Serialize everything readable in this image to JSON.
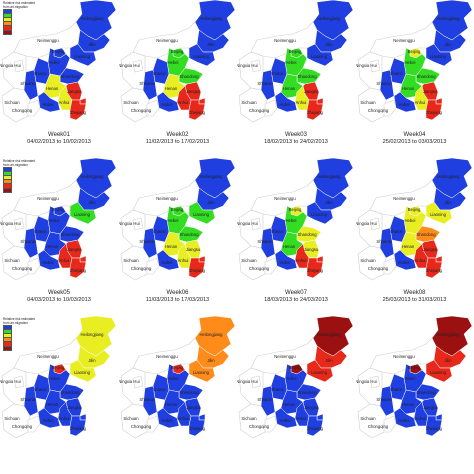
{
  "colors": {
    "class1": "#1f3fe0",
    "class2": "#33dd22",
    "class3": "#e8ee22",
    "class4": "#ff8c1a",
    "class5": "#e8281a",
    "class6": "#9b1010",
    "outline": "#cfcfcf"
  },
  "legend": {
    "title": "Relative risk estimated from air-migration",
    "entries": [
      "class1",
      "class2",
      "class3",
      "class4",
      "class5",
      "class6"
    ]
  },
  "province_names": {
    "heilongjiang": "Heilongjiang",
    "jilin": "Jilin",
    "liaoning": "Liaoning",
    "neimenggu": "Neimenggu",
    "beijing": "Beijing",
    "hebei": "Hebei",
    "shanxi": "Shanxi",
    "shandong": "Shandong",
    "henan": "Henan",
    "jiangsu": "Jiangsu",
    "anhui": "Anhui",
    "shaanxi": "Shaanxi",
    "hubei": "Hubei",
    "sichuan": "Sichuan",
    "chongqing": "Chongqing",
    "ningxia": "Ningxia Hui",
    "gansu": "Gansu",
    "zhejiang": "Zhejiang",
    "shanghai": "Shanghai"
  },
  "panels": [
    {
      "week": "Week01",
      "dates": "04/02/2013 to 10/02/2013",
      "legend": true,
      "fill": {
        "heilongjiang": "class1",
        "jilin": "class1",
        "liaoning": "class1",
        "beijing": "class1",
        "hebei": "class1",
        "shanxi": "class1",
        "shandong": "class1",
        "henan": "class3",
        "jiangsu": "class5",
        "anhui": "class3",
        "zhejiang": "class5",
        "shanghai": "class5",
        "hubei": "class1",
        "shaanxi": "class1"
      }
    },
    {
      "week": "Week02",
      "dates": "11/02/2013 to 17/02/2013",
      "legend": false,
      "fill": {
        "heilongjiang": "class1",
        "jilin": "class1",
        "liaoning": "class1",
        "beijing": "class2",
        "hebei": "class2",
        "shanxi": "class1",
        "shandong": "class2",
        "henan": "class3",
        "jiangsu": "class5",
        "anhui": "class5",
        "zhejiang": "class5",
        "shanghai": "class5",
        "hubei": "class1",
        "shaanxi": "class1"
      }
    },
    {
      "week": "Week03",
      "dates": "18/02/2013 to 24/02/2013",
      "legend": false,
      "fill": {
        "heilongjiang": "class1",
        "jilin": "class1",
        "liaoning": "class1",
        "beijing": "class2",
        "hebei": "class2",
        "shanxi": "class1",
        "shandong": "class2",
        "henan": "class2",
        "jiangsu": "class5",
        "anhui": "class3",
        "zhejiang": "class5",
        "shanghai": "class5",
        "hubei": "class1",
        "shaanxi": "class1"
      }
    },
    {
      "week": "Week04",
      "dates": "25/02/2013 to 03/03/2013",
      "legend": false,
      "fill": {
        "heilongjiang": "class1",
        "jilin": "class1",
        "liaoning": "class1",
        "beijing": "class3",
        "hebei": "class2",
        "shanxi": "class1",
        "shandong": "class2",
        "henan": "class2",
        "jiangsu": "class5",
        "anhui": "class3",
        "zhejiang": "class5",
        "shanghai": "class5",
        "hubei": "class1",
        "shaanxi": "class1"
      }
    },
    {
      "week": "Week05",
      "dates": "04/03/2013 to 10/03/2013",
      "legend": true,
      "fill": {
        "heilongjiang": "class1",
        "jilin": "class1",
        "liaoning": "class2",
        "beijing": "class1",
        "hebei": "class1",
        "shanxi": "class1",
        "shandong": "class1",
        "henan": "class1",
        "jiangsu": "class5",
        "anhui": "class5",
        "zhejiang": "class5",
        "shanghai": "class5",
        "hubei": "class1",
        "shaanxi": "class1"
      }
    },
    {
      "week": "Week06",
      "dates": "11/03/2013 to 17/03/2013",
      "legend": false,
      "fill": {
        "heilongjiang": "class1",
        "jilin": "class1",
        "liaoning": "class2",
        "beijing": "class2",
        "hebei": "class2",
        "shanxi": "class1",
        "shandong": "class2",
        "henan": "class3",
        "jiangsu": "class3",
        "anhui": "class3",
        "zhejiang": "class5",
        "shanghai": "class5",
        "hubei": "class1",
        "shaanxi": "class1"
      }
    },
    {
      "week": "Week07",
      "dates": "18/03/2013 to 24/03/2013",
      "legend": false,
      "fill": {
        "heilongjiang": "class1",
        "jilin": "class1",
        "liaoning": "class1",
        "beijing": "class3",
        "hebei": "class2",
        "shanxi": "class1",
        "shandong": "class3",
        "henan": "class2",
        "jiangsu": "class3",
        "anhui": "class5",
        "zhejiang": "class5",
        "shanghai": "class5",
        "hubei": "class1",
        "shaanxi": "class1"
      }
    },
    {
      "week": "Week08",
      "dates": "25/03/2013 to 31/03/2013",
      "legend": false,
      "fill": {
        "heilongjiang": "class1",
        "jilin": "class1",
        "liaoning": "class3",
        "beijing": "class3",
        "hebei": "class3",
        "shanxi": "class1",
        "shandong": "class4",
        "henan": "class3",
        "jiangsu": "class5",
        "anhui": "class5",
        "zhejiang": "class5",
        "shanghai": "class5",
        "hubei": "class1",
        "shaanxi": "class1"
      }
    },
    {
      "week": "",
      "dates": "",
      "legend": true,
      "fill": {
        "heilongjiang": "class3",
        "jilin": "class3",
        "liaoning": "class3",
        "beijing": "class5",
        "hebei": "class1",
        "shanxi": "class1",
        "shandong": "class1",
        "henan": "class1",
        "jiangsu": "class1",
        "anhui": "class1",
        "zhejiang": "class1",
        "shanghai": "class1",
        "hubei": "class1",
        "shaanxi": "class1"
      }
    },
    {
      "week": "",
      "dates": "",
      "legend": false,
      "fill": {
        "heilongjiang": "class4",
        "jilin": "class4",
        "liaoning": "class4",
        "beijing": "class5",
        "hebei": "class1",
        "shanxi": "class1",
        "shandong": "class1",
        "henan": "class1",
        "jiangsu": "class1",
        "anhui": "class1",
        "zhejiang": "class1",
        "shanghai": "class1",
        "hubei": "class1",
        "shaanxi": "class1"
      }
    },
    {
      "week": "",
      "dates": "",
      "legend": false,
      "fill": {
        "heilongjiang": "class6",
        "jilin": "class5",
        "liaoning": "class5",
        "beijing": "class6",
        "hebei": "class1",
        "shanxi": "class1",
        "shandong": "class1",
        "henan": "class1",
        "jiangsu": "class1",
        "anhui": "class1",
        "zhejiang": "class1",
        "shanghai": "class1",
        "hubei": "class1",
        "shaanxi": "class1"
      }
    },
    {
      "week": "",
      "dates": "",
      "legend": false,
      "fill": {
        "heilongjiang": "class6",
        "jilin": "class5",
        "liaoning": "class5",
        "beijing": "class6",
        "hebei": "class1",
        "shanxi": "class1",
        "shandong": "class1",
        "henan": "class1",
        "jiangsu": "class1",
        "anhui": "class1",
        "zhejiang": "class1",
        "shanghai": "class1",
        "hubei": "class1",
        "shaanxi": "class1"
      }
    }
  ]
}
